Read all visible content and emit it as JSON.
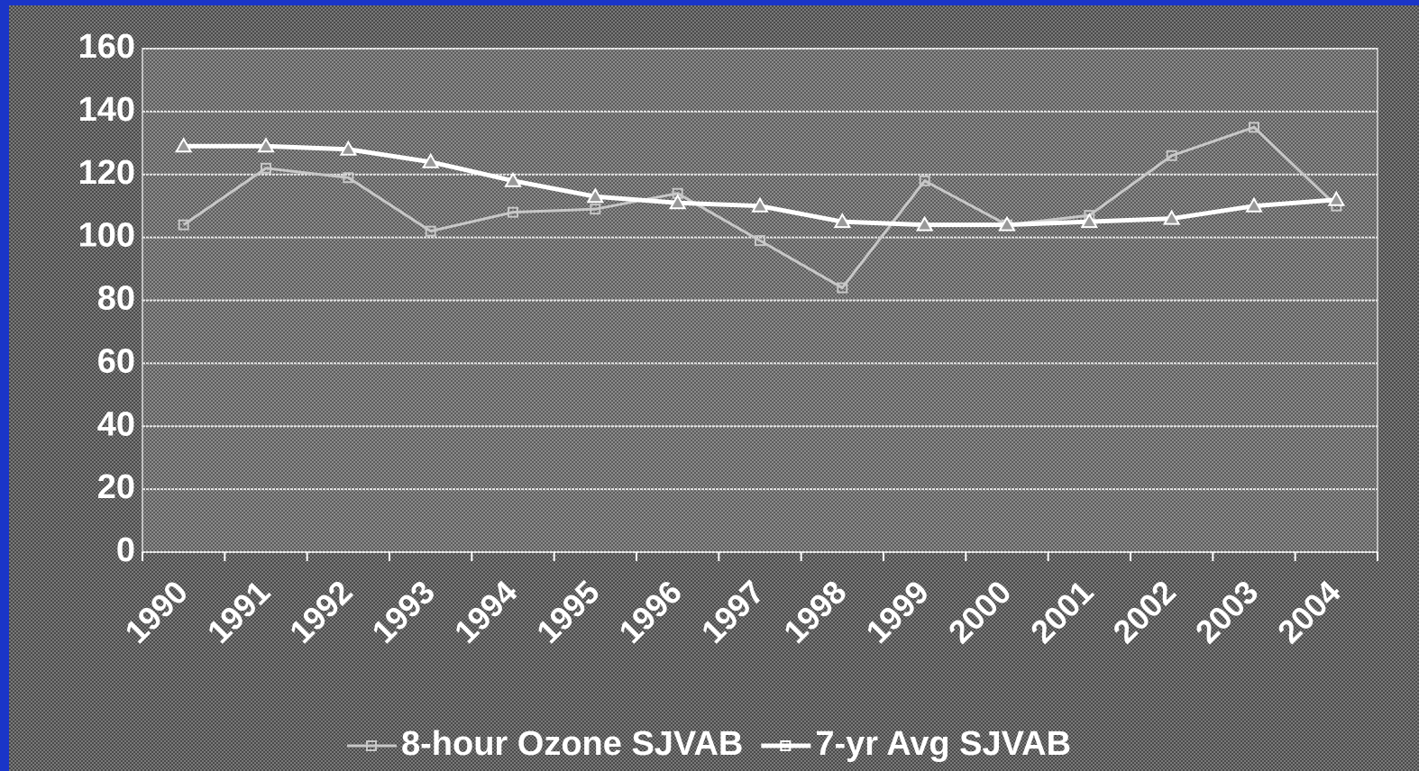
{
  "chart_data": {
    "type": "line",
    "categories": [
      "1990",
      "1991",
      "1992",
      "1993",
      "1994",
      "1995",
      "1996",
      "1997",
      "1998",
      "1999",
      "2000",
      "2001",
      "2002",
      "2003",
      "2004"
    ],
    "series": [
      {
        "name": "8-hour Ozone SJVAB",
        "color": "#c8c8c8",
        "values": [
          104,
          122,
          119,
          102,
          108,
          109,
          114,
          99,
          84,
          118,
          104,
          107,
          126,
          135,
          110
        ]
      },
      {
        "name": "7-yr Avg SJVAB",
        "color": "#ffffff",
        "values": [
          129,
          129,
          128,
          124,
          118,
          113,
          111,
          110,
          105,
          104,
          104,
          105,
          106,
          110,
          112
        ]
      }
    ],
    "ylim": [
      0,
      160
    ],
    "yticks": [
      0,
      20,
      40,
      60,
      80,
      100,
      120,
      140,
      160
    ],
    "grid": true,
    "legend": "bottom"
  }
}
